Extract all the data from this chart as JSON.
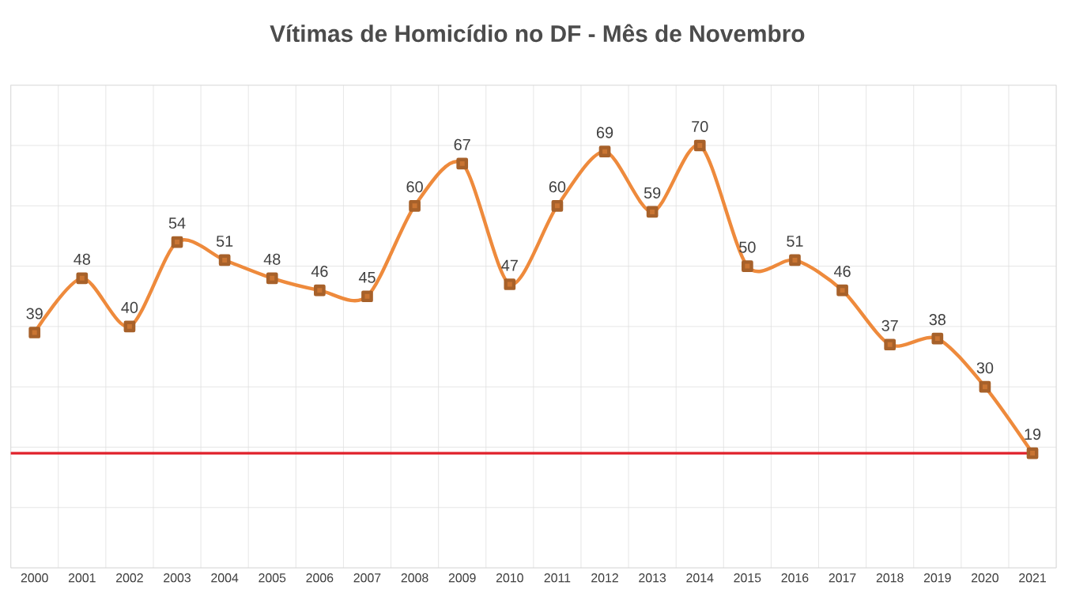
{
  "chart_data": {
    "type": "line",
    "title": "Vítimas de Homicídio no DF - Mês de Novembro",
    "categories": [
      "2000",
      "2001",
      "2002",
      "2003",
      "2004",
      "2005",
      "2006",
      "2007",
      "2008",
      "2009",
      "2010",
      "2011",
      "2012",
      "2013",
      "2014",
      "2015",
      "2016",
      "2017",
      "2018",
      "2019",
      "2020",
      "2021"
    ],
    "values": [
      39,
      48,
      40,
      54,
      51,
      48,
      46,
      45,
      60,
      67,
      47,
      60,
      69,
      59,
      70,
      50,
      51,
      46,
      37,
      38,
      30,
      19
    ],
    "color": "#ee8a3c",
    "ylim": [
      0,
      80
    ],
    "yticks": [
      {
        "value": 0,
        "label": null
      },
      {
        "value": 10,
        "label": null
      },
      {
        "value": 20,
        "label": null
      },
      {
        "value": 30,
        "label": null
      },
      {
        "value": 40,
        "label": null
      },
      {
        "value": 50,
        "label": null
      },
      {
        "value": 60,
        "label": null
      },
      {
        "value": 70,
        "label": null
      },
      {
        "value": 80,
        "label": null
      }
    ],
    "tick_labels": "x",
    "grid": true,
    "marker": "square",
    "line_style": "solid",
    "data_labels": true,
    "ref_lines": [
      {
        "axis": "y",
        "value": 19,
        "color": "#e0202a"
      }
    ]
  }
}
